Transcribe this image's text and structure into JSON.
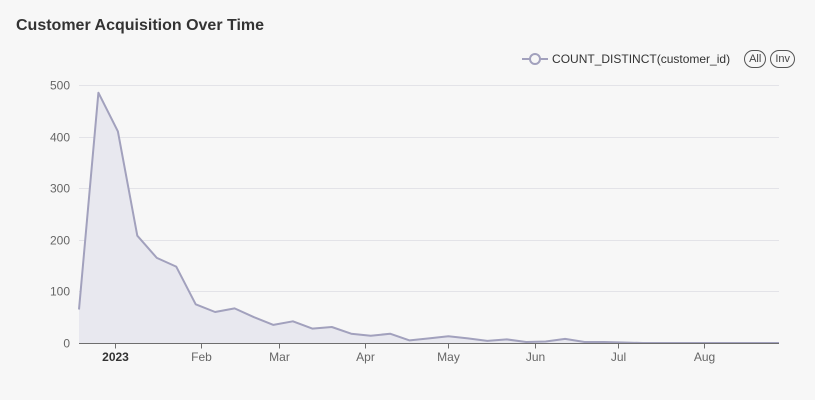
{
  "chart_data": {
    "type": "area",
    "title": "Customer Acquisition Over Time",
    "xlabel": "",
    "ylabel": "",
    "ylim": [
      0,
      500
    ],
    "xlim": [
      "2022-12-19",
      "2023-08-28"
    ],
    "grid": true,
    "legend_position": "top-right",
    "yticks": [
      0,
      100,
      200,
      300,
      400,
      500
    ],
    "xticks": [
      {
        "date": "2023-01-01",
        "label": "2023",
        "bold": true
      },
      {
        "date": "2023-02-01",
        "label": "Feb",
        "bold": false
      },
      {
        "date": "2023-03-01",
        "label": "Mar",
        "bold": false
      },
      {
        "date": "2023-04-01",
        "label": "Apr",
        "bold": false
      },
      {
        "date": "2023-05-01",
        "label": "May",
        "bold": false
      },
      {
        "date": "2023-06-01",
        "label": "Jun",
        "bold": false
      },
      {
        "date": "2023-07-01",
        "label": "Jul",
        "bold": false
      },
      {
        "date": "2023-08-01",
        "label": "Aug",
        "bold": false
      }
    ],
    "series": [
      {
        "name": "COUNT_DISTINCT(customer_id)",
        "color": "#a2a1bd",
        "fill": "#e8e8ef",
        "points": [
          [
            "2022-12-19",
            65
          ],
          [
            "2022-12-26",
            485
          ],
          [
            "2023-01-02",
            410
          ],
          [
            "2023-01-09",
            208
          ],
          [
            "2023-01-16",
            165
          ],
          [
            "2023-01-23",
            148
          ],
          [
            "2023-01-30",
            75
          ],
          [
            "2023-02-06",
            60
          ],
          [
            "2023-02-13",
            67
          ],
          [
            "2023-02-20",
            50
          ],
          [
            "2023-02-27",
            35
          ],
          [
            "2023-03-06",
            42
          ],
          [
            "2023-03-13",
            28
          ],
          [
            "2023-03-20",
            31
          ],
          [
            "2023-03-27",
            18
          ],
          [
            "2023-04-03",
            14
          ],
          [
            "2023-04-10",
            18
          ],
          [
            "2023-04-17",
            5
          ],
          [
            "2023-04-24",
            9
          ],
          [
            "2023-05-01",
            13
          ],
          [
            "2023-05-08",
            9
          ],
          [
            "2023-05-15",
            4
          ],
          [
            "2023-05-22",
            7
          ],
          [
            "2023-05-29",
            2
          ],
          [
            "2023-06-05",
            3
          ],
          [
            "2023-06-12",
            8
          ],
          [
            "2023-06-19",
            2
          ],
          [
            "2023-06-26",
            2
          ],
          [
            "2023-07-03",
            1
          ],
          [
            "2023-07-10",
            0
          ],
          [
            "2023-07-17",
            0
          ],
          [
            "2023-07-24",
            0
          ],
          [
            "2023-07-31",
            0
          ],
          [
            "2023-08-07",
            0
          ],
          [
            "2023-08-14",
            0
          ],
          [
            "2023-08-21",
            0
          ],
          [
            "2023-08-28",
            0
          ]
        ]
      }
    ]
  },
  "legend": {
    "label": "COUNT_DISTINCT(customer_id)",
    "all_button": "All",
    "inv_button": "Inv"
  }
}
